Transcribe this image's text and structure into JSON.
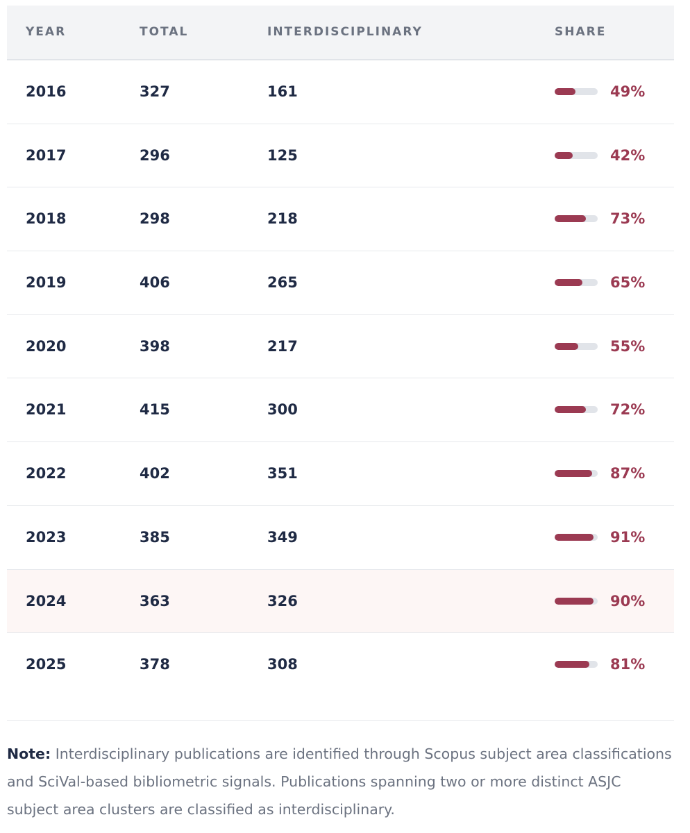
{
  "table": {
    "headers": [
      "YEAR",
      "TOTAL",
      "INTERDISCIPLINARY",
      "SHARE"
    ],
    "rows": [
      {
        "year": "2016",
        "total": "327",
        "interdisciplinary": "161",
        "share": {
          "value": 49,
          "label": "49%"
        }
      },
      {
        "year": "2017",
        "total": "296",
        "interdisciplinary": "125",
        "share": {
          "value": 42,
          "label": "42%"
        }
      },
      {
        "year": "2018",
        "total": "298",
        "interdisciplinary": "218",
        "share": {
          "value": 73,
          "label": "73%"
        }
      },
      {
        "year": "2019",
        "total": "406",
        "interdisciplinary": "265",
        "share": {
          "value": 65,
          "label": "65%"
        }
      },
      {
        "year": "2020",
        "total": "398",
        "interdisciplinary": "217",
        "share": {
          "value": 55,
          "label": "55%"
        }
      },
      {
        "year": "2021",
        "total": "415",
        "interdisciplinary": "300",
        "share": {
          "value": 72,
          "label": "72%"
        }
      },
      {
        "year": "2022",
        "total": "402",
        "interdisciplinary": "351",
        "share": {
          "value": 87,
          "label": "87%"
        }
      },
      {
        "year": "2023",
        "total": "385",
        "interdisciplinary": "349",
        "share": {
          "value": 91,
          "label": "91%"
        }
      },
      {
        "year": "2024",
        "total": "363",
        "interdisciplinary": "326",
        "share": {
          "value": 90,
          "label": "90%"
        }
      },
      {
        "year": "2025",
        "total": "378",
        "interdisciplinary": "308",
        "share": {
          "value": 81,
          "label": "81%"
        }
      }
    ]
  },
  "note": {
    "label": "Note:",
    "text": "Interdisciplinary publications are identified through Scopus subject area classifications and SciVal-based bibliometric signals. Publications spanning two or more distinct ASJC subject area clusters are classified as interdisciplinary."
  }
}
